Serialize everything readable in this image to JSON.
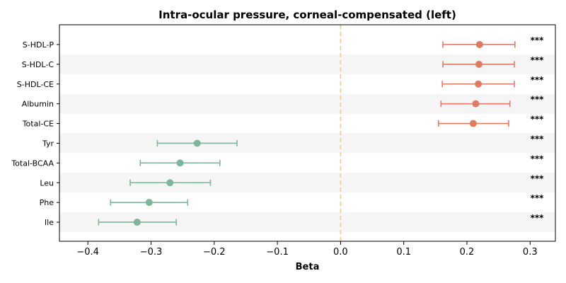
{
  "chart_data": {
    "type": "forest",
    "title": "Intra-ocular pressure, corneal-compensated (left)",
    "xlabel": "Beta",
    "ylabel": "",
    "xlim": [
      -0.445,
      0.34
    ],
    "xticks": [
      -0.4,
      -0.3,
      -0.2,
      -0.1,
      0.0,
      0.1,
      0.2,
      0.3
    ],
    "xtick_labels": [
      "−0.4",
      "−0.3",
      "−0.2",
      "−0.1",
      "0.0",
      "0.1",
      "0.2",
      "0.3"
    ],
    "reference_line": 0.0,
    "grid": false,
    "colors": {
      "positive": "#e07b62",
      "negative": "#7fb59a",
      "reference": "#f2c98a",
      "band": "#f5f5f5"
    },
    "rows": [
      {
        "label": "S-HDL-P",
        "beta": 0.22,
        "ci_low": 0.162,
        "ci_high": 0.276,
        "sig": "***"
      },
      {
        "label": "S-HDL-C",
        "beta": 0.219,
        "ci_low": 0.162,
        "ci_high": 0.275,
        "sig": "***"
      },
      {
        "label": "S-HDL-CE",
        "beta": 0.218,
        "ci_low": 0.161,
        "ci_high": 0.275,
        "sig": "***"
      },
      {
        "label": "Albumin",
        "beta": 0.214,
        "ci_low": 0.159,
        "ci_high": 0.268,
        "sig": "***"
      },
      {
        "label": "Total-CE",
        "beta": 0.21,
        "ci_low": 0.155,
        "ci_high": 0.266,
        "sig": "***"
      },
      {
        "label": "Tyr",
        "beta": -0.227,
        "ci_low": -0.29,
        "ci_high": -0.164,
        "sig": "***"
      },
      {
        "label": "Total-BCAA",
        "beta": -0.254,
        "ci_low": -0.317,
        "ci_high": -0.191,
        "sig": "***"
      },
      {
        "label": "Leu",
        "beta": -0.27,
        "ci_low": -0.333,
        "ci_high": -0.206,
        "sig": "***"
      },
      {
        "label": "Phe",
        "beta": -0.303,
        "ci_low": -0.364,
        "ci_high": -0.242,
        "sig": "***"
      },
      {
        "label": "Ile",
        "beta": -0.322,
        "ci_low": -0.383,
        "ci_high": -0.26,
        "sig": "***"
      }
    ]
  }
}
